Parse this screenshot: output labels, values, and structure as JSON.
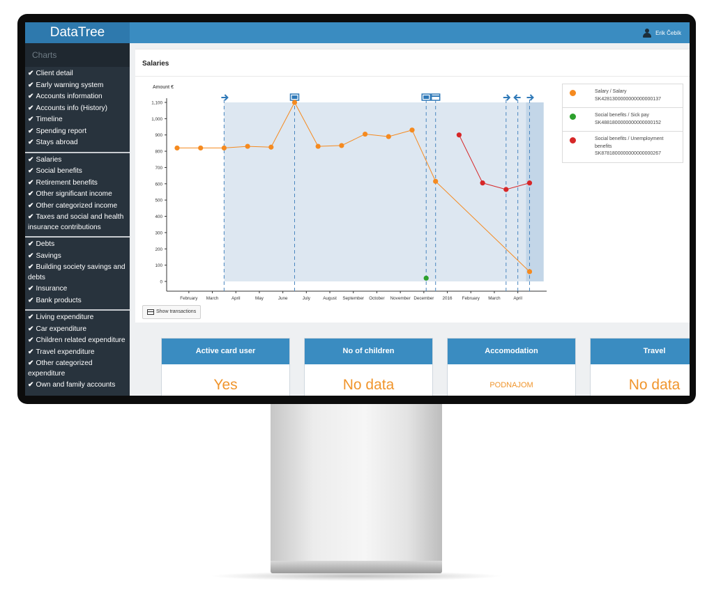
{
  "app": {
    "brand": "DataTree",
    "user_name": "Erik Čebík"
  },
  "sidebar": {
    "title": "Charts",
    "groups": [
      [
        "Client detail",
        "Early warning system",
        "Accounts information",
        "Accounts info (History)",
        "Timeline",
        "Spending report",
        "Stays abroad"
      ],
      [
        "Salaries",
        "Social benefits",
        "Retirement benefits",
        "Other significant income",
        "Other categorized income",
        "Taxes and social and health insurance contributions"
      ],
      [
        "Debts",
        "Savings",
        "Building society savings and debts",
        "Insurance",
        "Bank products"
      ],
      [
        "Living expenditure",
        "Car expenditure",
        "Children related expenditure",
        "Travel expenditure",
        "Other categorized expenditure",
        "Own and family accounts"
      ]
    ]
  },
  "panel": {
    "title": "Salaries",
    "show_transactions_label": "Show transactions"
  },
  "legend": [
    {
      "label": "Salary / Salary",
      "account": "SK4281300000000000000137",
      "color": "#f58a1f"
    },
    {
      "label": "Social benefits / Sick pay",
      "account": "SK4881800000000000000152",
      "color": "#2ca02c"
    },
    {
      "label": "Social benefits / Unemployment benefits",
      "account": "SK8781800000000000000267",
      "color": "#d62728"
    }
  ],
  "chart_data": {
    "type": "line",
    "ylabel": "Amount €",
    "ylim": [
      0,
      1100
    ],
    "yticks": [
      0,
      100,
      200,
      300,
      400,
      500,
      600,
      700,
      800,
      900,
      "1,000",
      "1,100"
    ],
    "x_tick_labels": [
      "February",
      "March",
      "April",
      "May",
      "June",
      "July",
      "August",
      "September",
      "October",
      "November",
      "December",
      "2016",
      "February",
      "March",
      "April"
    ],
    "series": [
      {
        "name": "Salary / Salary",
        "color": "#f58a1f",
        "points": [
          [
            -0.5,
            820
          ],
          [
            0.5,
            820
          ],
          [
            1.5,
            820
          ],
          [
            2.5,
            830
          ],
          [
            3.5,
            825
          ],
          [
            4.5,
            1100
          ],
          [
            5.5,
            830
          ],
          [
            6.5,
            835
          ],
          [
            7.5,
            905
          ],
          [
            8.5,
            890
          ],
          [
            9.5,
            930
          ],
          [
            10.5,
            615
          ],
          [
            14.5,
            60
          ]
        ]
      },
      {
        "name": "Social benefits / Sick pay",
        "color": "#2ca02c",
        "points": [
          [
            10.1,
            20
          ]
        ]
      },
      {
        "name": "Social benefits / Unemployment benefits",
        "color": "#d62728",
        "points": [
          [
            11.5,
            900
          ],
          [
            12.5,
            605
          ],
          [
            13.5,
            565
          ],
          [
            14.5,
            605
          ]
        ]
      }
    ],
    "markers": [
      {
        "type": "arrow-right",
        "x": 1.5
      },
      {
        "type": "cc",
        "x": 4.5
      },
      {
        "type": "cc",
        "x": 10.1
      },
      {
        "type": "card",
        "x": 10.5
      },
      {
        "type": "arrow-right",
        "x": 13.5
      },
      {
        "type": "arrow-left",
        "x": 14.0
      },
      {
        "type": "arrow-right",
        "x": 14.5
      }
    ],
    "grid": false
  },
  "cards": [
    {
      "title": "Active card user",
      "value": "Yes"
    },
    {
      "title": "No of children",
      "value": "No data"
    },
    {
      "title": "Accomodation",
      "value": "PODNAJOM"
    },
    {
      "title": "Travel",
      "value": "No data"
    }
  ]
}
